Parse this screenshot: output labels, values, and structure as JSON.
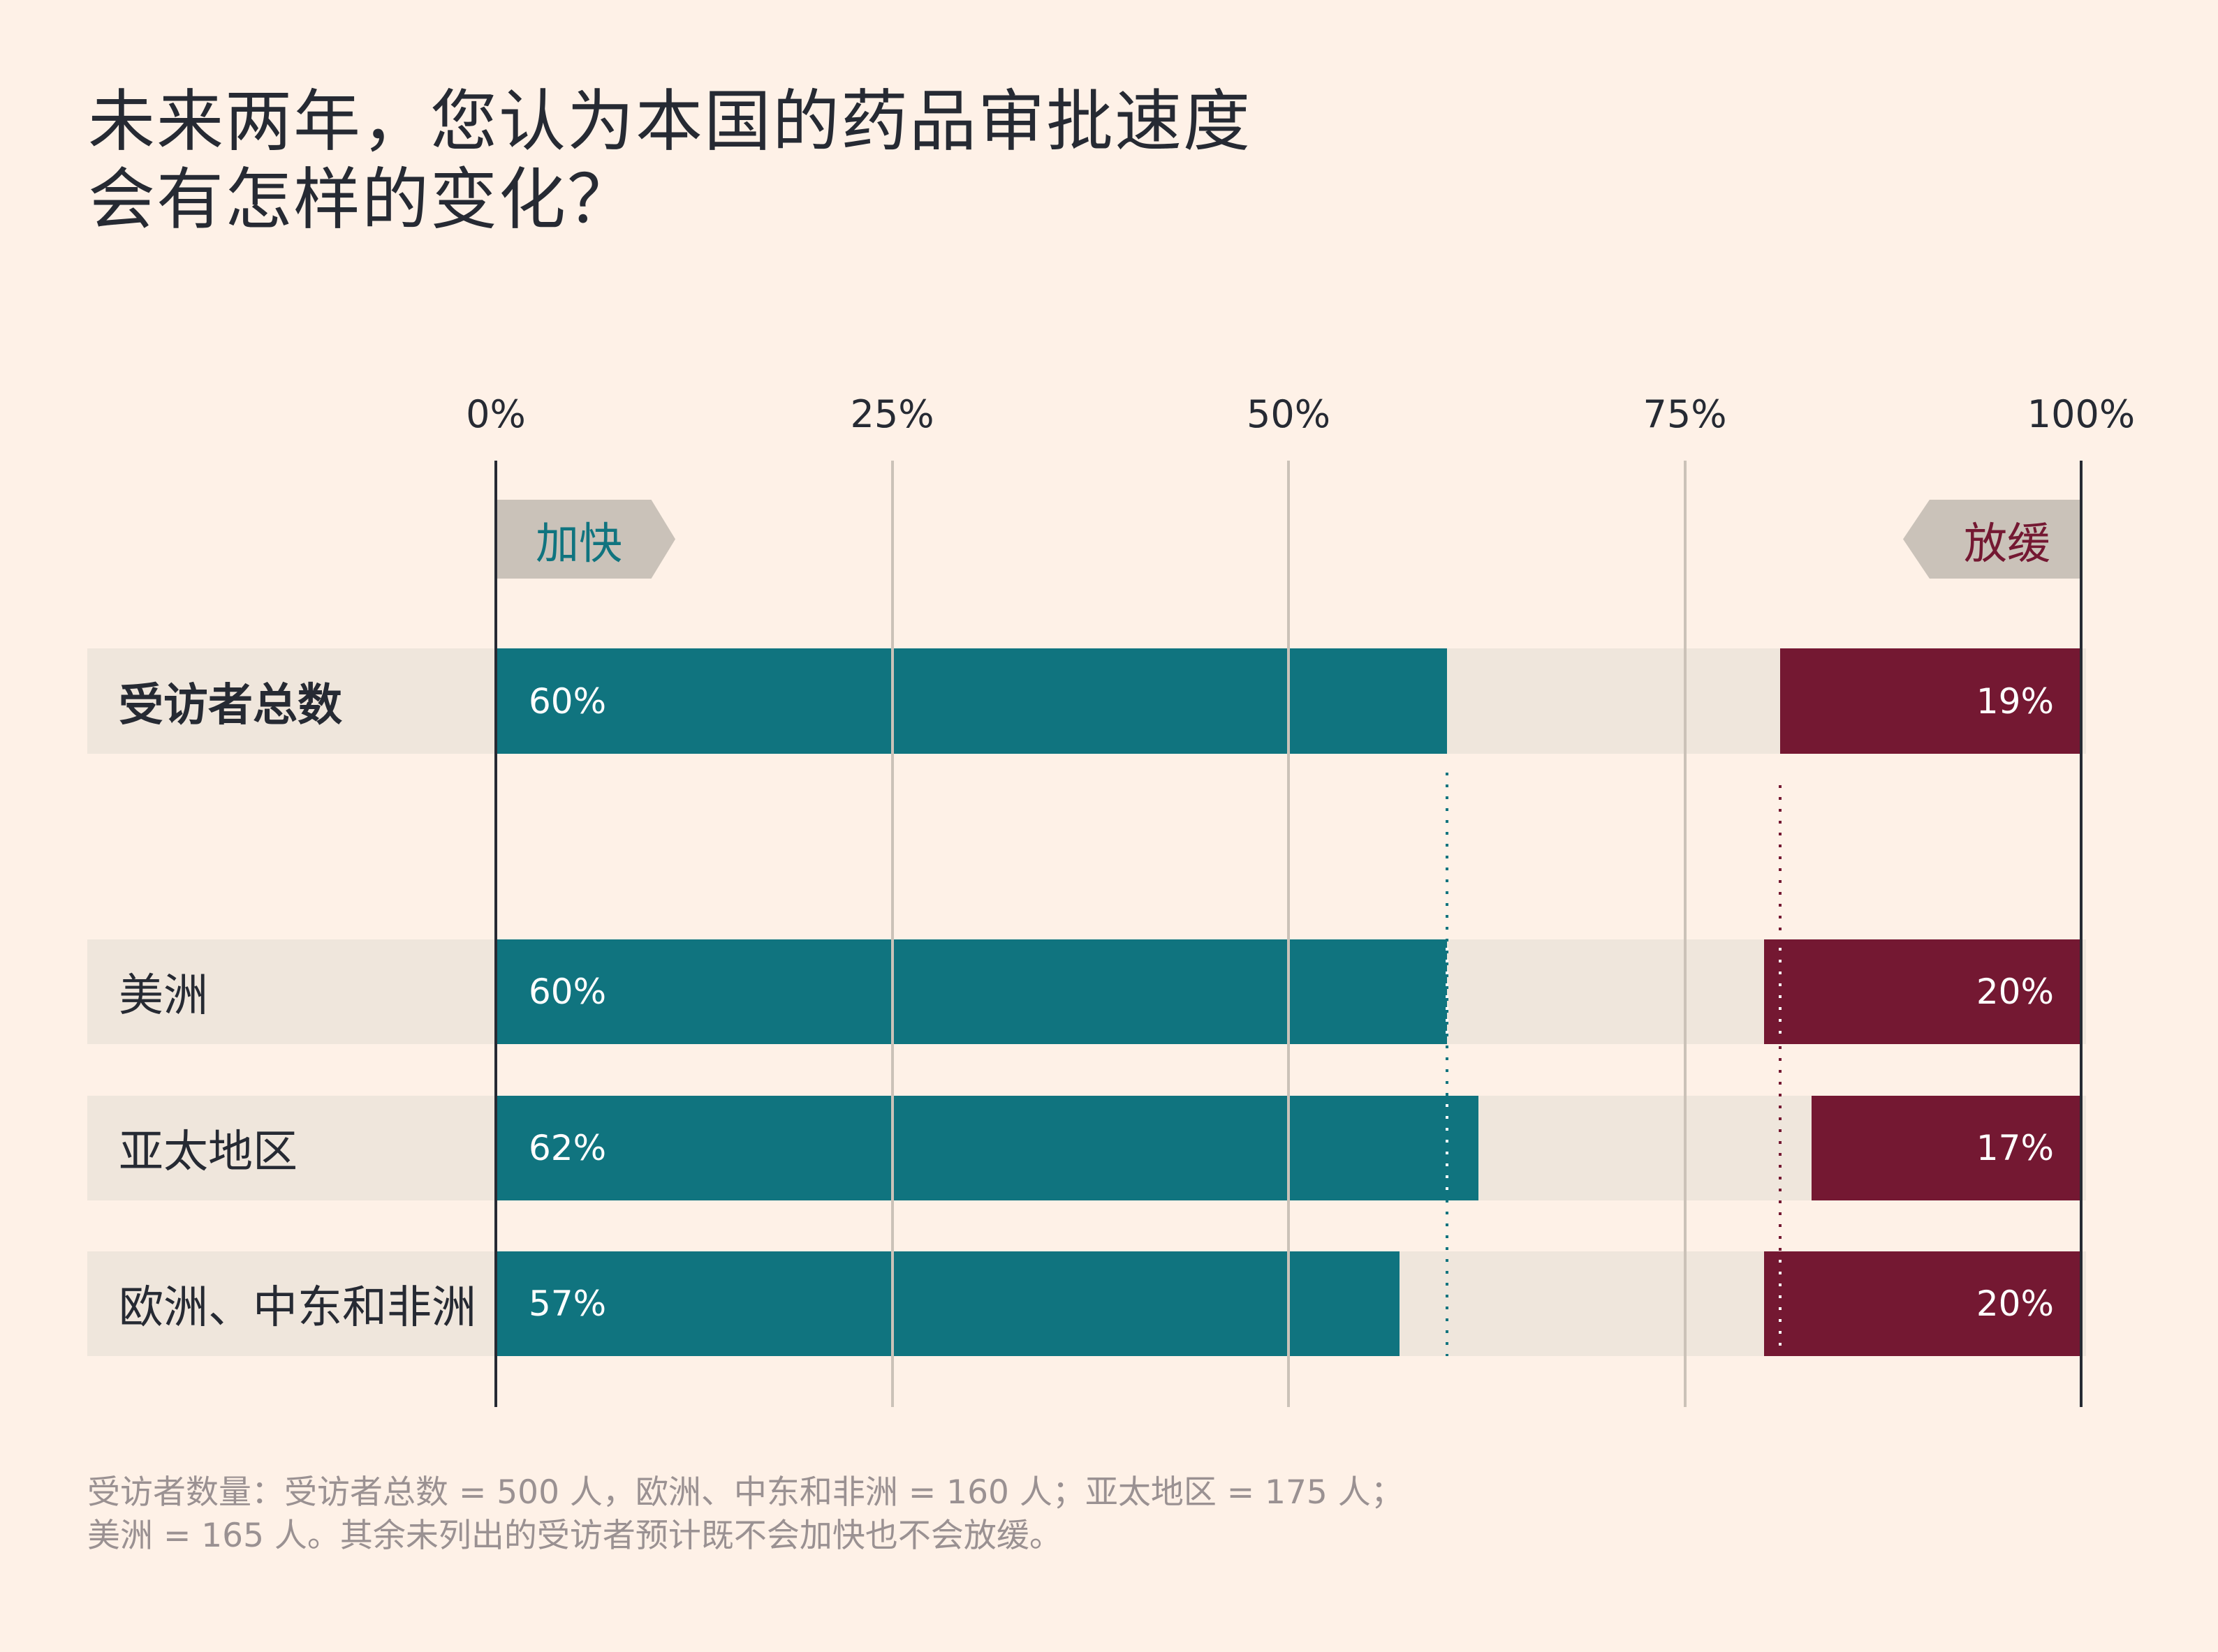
{
  "title": {
    "line1": "未来两年，您认为本国的药品审批速度",
    "line2": "会有怎样的变化？"
  },
  "axis": {
    "ticks": [
      {
        "value": 0,
        "label": "0%"
      },
      {
        "value": 25,
        "label": "25%"
      },
      {
        "value": 50,
        "label": "50%"
      },
      {
        "value": 75,
        "label": "75%"
      },
      {
        "value": 100,
        "label": "100%"
      }
    ]
  },
  "tags": {
    "faster": "加快",
    "slower": "放缓"
  },
  "colors": {
    "background": "#fef1e7",
    "faster": "#10747f",
    "slower": "#741832",
    "band": "#efe6dc",
    "tag": "#cac2b9",
    "gridline": "#cbc2b8",
    "text": "#262a33",
    "footer": "#9a9192"
  },
  "footer": {
    "line1": "受访者数量：受访者总数 = 500 人，欧洲、中东和非洲 = 160 人；亚太地区 = 175 人；",
    "line2": "美洲 = 165 人。其余未列出的受访者预计既不会加快也不会放缓。"
  },
  "chart_data": {
    "type": "bar",
    "orientation": "horizontal",
    "stacking": "diverging (faster from left, slower from right)",
    "title": "未来两年，您认为本国的药品审批速度会有怎样的变化？",
    "xlabel": "",
    "ylabel": "",
    "xlim": [
      0,
      100
    ],
    "x_ticks": [
      "0%",
      "25%",
      "50%",
      "75%",
      "100%"
    ],
    "grid": true,
    "legend": [
      "加快",
      "放缓"
    ],
    "categories": [
      "受访者总数",
      "美洲",
      "亚太地区",
      "欧洲、中东和非洲"
    ],
    "series": [
      {
        "name": "加快",
        "values": [
          60,
          60,
          62,
          57
        ],
        "labels": [
          "60%",
          "60%",
          "62%",
          "57%"
        ]
      },
      {
        "name": "放缓",
        "values": [
          19,
          20,
          17,
          20
        ],
        "labels": [
          "19%",
          "20%",
          "17%",
          "20%"
        ]
      }
    ],
    "reference_lines": [
      {
        "series": "加快",
        "value": 60,
        "style": "dotted",
        "note": "total respondents benchmark"
      },
      {
        "series": "放缓",
        "value": 19,
        "style": "dotted",
        "note": "total respondents benchmark"
      }
    ],
    "annotations": [
      "受访者数量：受访者总数 = 500 人，欧洲、中东和非洲 = 160 人；亚太地区 = 175 人；美洲 = 165 人。其余未列出的受访者预计既不会加快也不会放缓。"
    ]
  }
}
